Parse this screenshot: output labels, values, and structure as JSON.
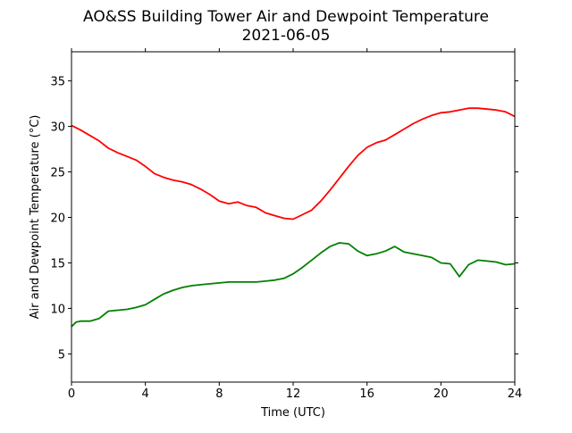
{
  "chart_data": {
    "type": "line",
    "title_line1": "AO&SS Building Tower Air and Dewpoint Temperature",
    "title_line2": "2021-06-05",
    "xlabel": "Time (UTC)",
    "ylabel": "Air and Dewpoint Temperature (°C)",
    "xlim": [
      0,
      24
    ],
    "ylim": [
      1.9,
      38.2
    ],
    "x_ticks": [
      0,
      4,
      8,
      12,
      16,
      20,
      24
    ],
    "y_ticks": [
      5,
      10,
      15,
      20,
      25,
      30,
      35
    ],
    "x_tick_labels": [
      "0",
      "4",
      "8",
      "12",
      "16",
      "20",
      "24"
    ],
    "y_tick_labels": [
      "5",
      "10",
      "15",
      "20",
      "25",
      "30",
      "35"
    ],
    "grid": false,
    "legend": "none",
    "series": [
      {
        "color": "#ff0000",
        "points": [
          [
            0.0,
            30.1
          ],
          [
            0.5,
            29.6
          ],
          [
            1.0,
            29.0
          ],
          [
            1.5,
            28.4
          ],
          [
            2.0,
            27.6
          ],
          [
            2.5,
            27.1
          ],
          [
            3.0,
            26.7
          ],
          [
            3.5,
            26.3
          ],
          [
            4.0,
            25.6
          ],
          [
            4.5,
            24.8
          ],
          [
            5.0,
            24.4
          ],
          [
            5.5,
            24.1
          ],
          [
            6.0,
            23.9
          ],
          [
            6.5,
            23.6
          ],
          [
            7.0,
            23.1
          ],
          [
            7.5,
            22.5
          ],
          [
            8.0,
            21.8
          ],
          [
            8.5,
            21.5
          ],
          [
            9.0,
            21.7
          ],
          [
            9.5,
            21.3
          ],
          [
            10.0,
            21.1
          ],
          [
            10.5,
            20.5
          ],
          [
            11.0,
            20.2
          ],
          [
            11.5,
            19.9
          ],
          [
            12.0,
            19.8
          ],
          [
            12.5,
            20.3
          ],
          [
            13.0,
            20.8
          ],
          [
            13.5,
            21.8
          ],
          [
            14.0,
            23.0
          ],
          [
            14.5,
            24.3
          ],
          [
            15.0,
            25.6
          ],
          [
            15.5,
            26.8
          ],
          [
            16.0,
            27.7
          ],
          [
            16.5,
            28.2
          ],
          [
            17.0,
            28.5
          ],
          [
            17.5,
            29.1
          ],
          [
            18.0,
            29.7
          ],
          [
            18.5,
            30.3
          ],
          [
            19.0,
            30.8
          ],
          [
            19.5,
            31.2
          ],
          [
            20.0,
            31.5
          ],
          [
            20.5,
            31.6
          ],
          [
            21.0,
            31.8
          ],
          [
            21.5,
            32.0
          ],
          [
            22.0,
            32.0
          ],
          [
            22.5,
            31.9
          ],
          [
            23.0,
            31.8
          ],
          [
            23.5,
            31.6
          ],
          [
            24.0,
            31.1
          ]
        ]
      },
      {
        "color": "#008000",
        "points": [
          [
            0.0,
            8.0
          ],
          [
            0.25,
            8.5
          ],
          [
            0.5,
            8.6
          ],
          [
            1.0,
            8.6
          ],
          [
            1.5,
            8.9
          ],
          [
            2.0,
            9.7
          ],
          [
            2.5,
            9.8
          ],
          [
            3.0,
            9.9
          ],
          [
            3.5,
            10.1
          ],
          [
            4.0,
            10.4
          ],
          [
            4.5,
            11.0
          ],
          [
            5.0,
            11.6
          ],
          [
            5.5,
            12.0
          ],
          [
            6.0,
            12.3
          ],
          [
            6.5,
            12.5
          ],
          [
            7.0,
            12.6
          ],
          [
            7.5,
            12.7
          ],
          [
            8.0,
            12.8
          ],
          [
            8.5,
            12.9
          ],
          [
            9.0,
            12.9
          ],
          [
            9.5,
            12.9
          ],
          [
            10.0,
            12.9
          ],
          [
            10.5,
            13.0
          ],
          [
            11.0,
            13.1
          ],
          [
            11.5,
            13.3
          ],
          [
            12.0,
            13.8
          ],
          [
            12.5,
            14.5
          ],
          [
            13.0,
            15.3
          ],
          [
            13.5,
            16.1
          ],
          [
            14.0,
            16.8
          ],
          [
            14.5,
            17.2
          ],
          [
            15.0,
            17.1
          ],
          [
            15.5,
            16.3
          ],
          [
            16.0,
            15.8
          ],
          [
            16.5,
            16.0
          ],
          [
            17.0,
            16.3
          ],
          [
            17.5,
            16.8
          ],
          [
            18.0,
            16.2
          ],
          [
            18.5,
            16.0
          ],
          [
            19.0,
            15.8
          ],
          [
            19.5,
            15.6
          ],
          [
            20.0,
            15.0
          ],
          [
            20.5,
            14.9
          ],
          [
            21.0,
            13.5
          ],
          [
            21.5,
            14.8
          ],
          [
            22.0,
            15.3
          ],
          [
            22.5,
            15.2
          ],
          [
            23.0,
            15.1
          ],
          [
            23.5,
            14.8
          ],
          [
            24.0,
            14.9
          ]
        ]
      }
    ]
  }
}
